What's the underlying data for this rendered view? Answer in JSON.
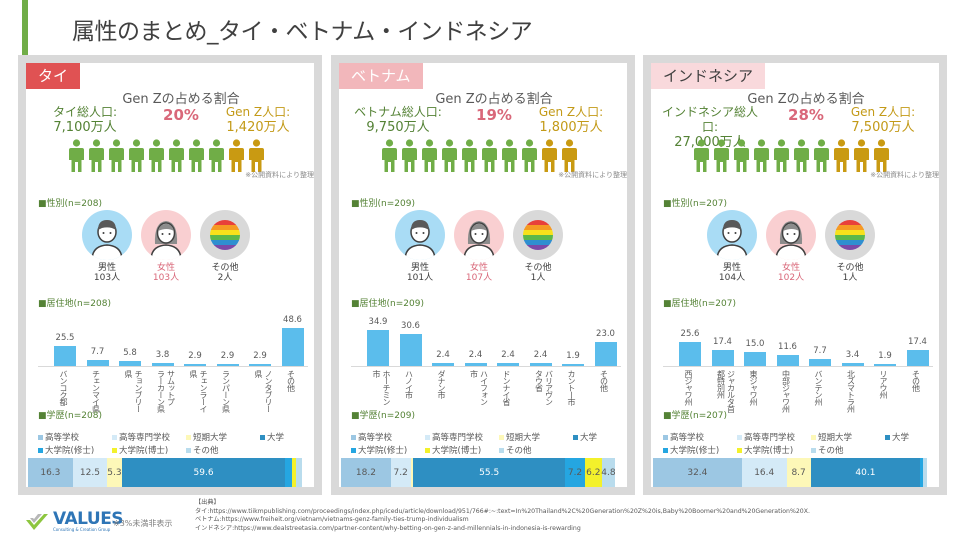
{
  "title": "属性のまとめ_タイ・ベトナム・インドネシア",
  "gen_z_title": "Gen Zの占める割合",
  "note_public": "※公開資料により整理",
  "colors": {
    "accent": "#70ad47",
    "male": "#a9dcf5",
    "female": "#f9cfd1",
    "other": "#d9d9d9",
    "genz_person": "#c99a12",
    "person": "#70ad47",
    "bar": "#5bbdec"
  },
  "education_legend": [
    "高等学校",
    "高等専門学校",
    "短期大学",
    "大学",
    "大学院(修士)",
    "大学院(博士)",
    "その他"
  ],
  "education_colors": [
    "#9cc7e3",
    "#d4eaf7",
    "#fdf8b8",
    "#2e8fc2",
    "#25a6e1",
    "#f3f12b",
    "#b9dced"
  ],
  "panels": [
    {
      "name": "タイ",
      "tab_color": "#e05253",
      "tab_text_color": "#ffffff",
      "genz_pct": "20%",
      "total_label": "タイ総人口:",
      "total_value": "7,100万人",
      "genz_label": "Gen Z人口:",
      "genz_value": "1,420万人",
      "people_total": 10,
      "people_genz": 2,
      "gender_title": "性別(n=208)",
      "gender": [
        {
          "label": "男性",
          "value": "103人",
          "icon": "male-avatar-icon"
        },
        {
          "label": "女性",
          "value": "103人",
          "icon": "female-avatar-icon"
        },
        {
          "label": "その他",
          "value": "2人",
          "icon": "rainbow-flag-icon"
        }
      ],
      "residence_title": "居住地(n=208)",
      "education_title": "学歴(n=208)"
    },
    {
      "name": "ベトナム",
      "tab_color": "#f2b7bb",
      "tab_text_color": "#ffffff",
      "genz_pct": "19%",
      "total_label": "ベトナム総人口:",
      "total_value": "9,750万人",
      "genz_label": "Gen Z人口:",
      "genz_value": "1,800万人",
      "people_total": 10,
      "people_genz": 2,
      "gender_title": "性別(n=209)",
      "gender": [
        {
          "label": "男性",
          "value": "101人",
          "icon": "male-avatar-icon"
        },
        {
          "label": "女性",
          "value": "107人",
          "icon": "female-avatar-icon"
        },
        {
          "label": "その他",
          "value": "1人",
          "icon": "rainbow-flag-icon"
        }
      ],
      "residence_title": "居住地(n=209)",
      "education_title": "学歴(n=209)"
    },
    {
      "name": "インドネシア",
      "tab_color": "#f9d9dc",
      "tab_text_color": "#404040",
      "genz_pct": "28%",
      "total_label": "インドネシア総人口:",
      "total_value": "27,000万人",
      "genz_label": "Gen Z人口:",
      "genz_value": "7,500万人",
      "people_total": 10,
      "people_genz": 3,
      "gender_title": "性別(n=207)",
      "gender": [
        {
          "label": "男性",
          "value": "104人",
          "icon": "male-avatar-icon"
        },
        {
          "label": "女性",
          "value": "102人",
          "icon": "female-avatar-icon"
        },
        {
          "label": "その他",
          "value": "1人",
          "icon": "rainbow-flag-icon"
        }
      ],
      "residence_title": "居住地(n=207)",
      "education_title": "学歴(n=207)"
    }
  ],
  "chart_data": [
    {
      "type": "bar",
      "title": "居住地(n=208)",
      "categories": [
        "バンコク都",
        "チェンマイ県",
        "チョンブリー\n県",
        "サムットプ\nラーカーン県",
        "チェンラーイ\n県",
        "ランパーン県",
        "ノンタブリー\n県",
        "その他"
      ],
      "values": [
        25.5,
        7.7,
        5.8,
        3.8,
        2.9,
        2.9,
        2.9,
        48.6
      ],
      "labels": [
        "25.5",
        "7.7",
        "5.8",
        "3.8",
        "2.9",
        "2.9",
        "2.9",
        "48.6"
      ],
      "ylim": [
        0,
        60
      ],
      "grid": false
    },
    {
      "type": "bar",
      "title": "居住地(n=209)",
      "categories": [
        "ホーチミン\n市",
        "ハノイ市",
        "ダナン市",
        "ハイフォン\n市",
        "ドンナイ省",
        "バリアヴン\nタウ省",
        "カントー市",
        "その他"
      ],
      "values": [
        34.9,
        30.6,
        2.4,
        2.4,
        2.4,
        2.4,
        1.9,
        23.0
      ],
      "labels": [
        "34.9",
        "30.6",
        "2.4",
        "2.4",
        "2.4",
        "2.4",
        "1.9",
        "23.0"
      ],
      "ylim": [
        0,
        45
      ],
      "grid": false
    },
    {
      "type": "bar",
      "title": "居住地(n=207)",
      "categories": [
        "西ジャワ州",
        "ジャカルタ首\n都特別州",
        "東ジャワ州",
        "中部ジャワ州",
        "バンテン州",
        "北スマトラ州",
        "リアウ州",
        "その他"
      ],
      "values": [
        25.6,
        17.4,
        15.0,
        11.6,
        7.7,
        3.4,
        1.9,
        17.4
      ],
      "labels": [
        "25.6",
        "17.4",
        "15.0",
        "11.6",
        "7.7",
        "3.4",
        "1.9",
        "17.4"
      ],
      "ylim": [
        0,
        50
      ],
      "grid": false
    },
    {
      "type": "bar",
      "stacked": true,
      "title": "学歴(n=208)",
      "series_names": [
        "高等学校",
        "高等専門学校",
        "短期大学",
        "大学",
        "大学院(修士)",
        "大学院(博士)",
        "その他"
      ],
      "values": [
        16.3,
        12.5,
        5.3,
        59.6,
        2.5,
        1.5,
        2.0
      ],
      "labels": [
        "16.3",
        "12.5",
        "5.3",
        "59.6",
        "",
        "",
        ""
      ]
    },
    {
      "type": "bar",
      "stacked": true,
      "title": "学歴(n=209)",
      "series_names": [
        "高等学校",
        "高等専門学校",
        "短期大学",
        "大学",
        "大学院(修士)",
        "大学院(博士)",
        "その他"
      ],
      "values": [
        18.2,
        7.2,
        1.0,
        55.5,
        7.2,
        6.2,
        4.8
      ],
      "labels": [
        "18.2",
        "7.2",
        "",
        "55.5",
        "7.2",
        "6.2",
        "4.8"
      ]
    },
    {
      "type": "bar",
      "stacked": true,
      "title": "学歴(n=207)",
      "series_names": [
        "高等学校",
        "高等専門学校",
        "短期大学",
        "大学",
        "大学院(修士)",
        "大学院(博士)",
        "その他"
      ],
      "values": [
        32.4,
        16.4,
        8.7,
        40.1,
        1.0,
        0,
        1.4
      ],
      "labels": [
        "32.4",
        "16.4",
        "8.7",
        "40.1",
        "",
        "",
        ""
      ]
    }
  ],
  "footer": {
    "logo": "VALUES",
    "logo_sub": "Consulting & Creation Group",
    "note": "※3%未満非表示",
    "sources": [
      "【出典】",
      "タイ:https://www.tiikmpublishing.com/proceedings/index.php/icedu/article/download/951/766#:~:text=In%20Thailand%2C%20Generation%20Z%20is,Baby%20Boomer%20and%20Generation%20X.",
      "ベトナム:https://www.freiheit.org/vietnam/vietnams-genz-family-ties-trump-individualism",
      "インドネシア:https://www.dealstreetasia.com/partner-content/why-betting-on-gen-z-and-millennials-in-indonesia-is-rewarding"
    ]
  }
}
